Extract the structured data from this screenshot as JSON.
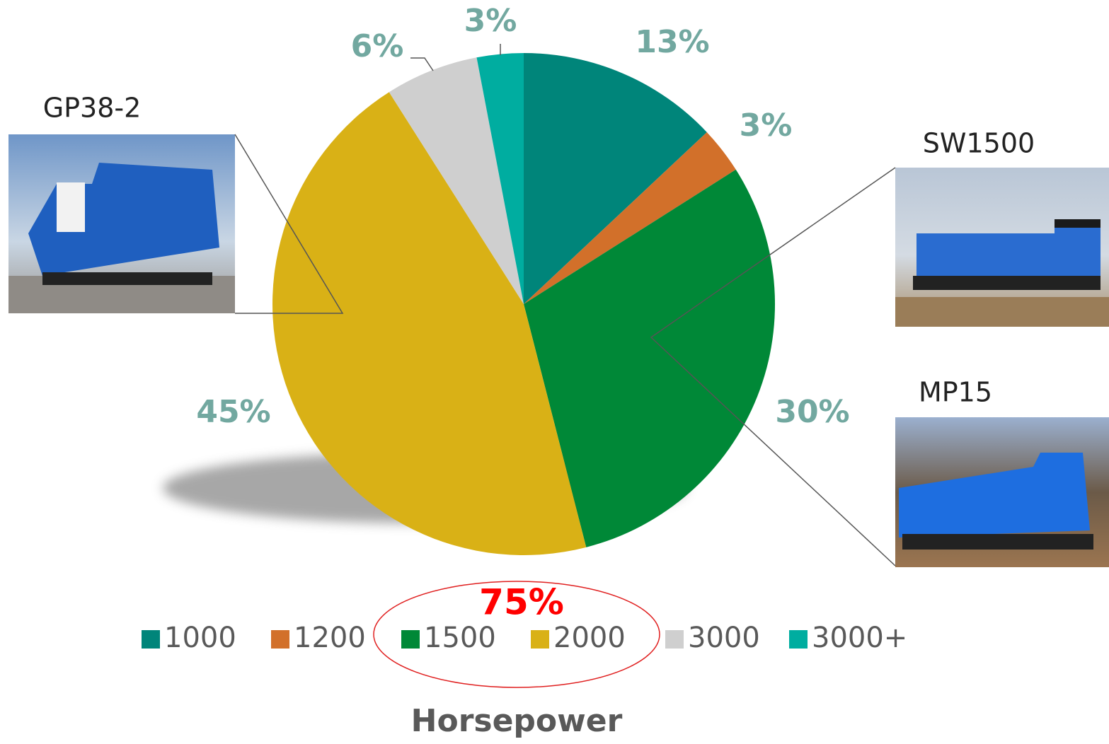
{
  "chart_data": {
    "type": "pie",
    "title": "Horsepower",
    "categories": [
      "1000",
      "1200",
      "1500",
      "2000",
      "3000",
      "3000+"
    ],
    "values": [
      13,
      3,
      30,
      45,
      6,
      3
    ],
    "value_labels": [
      "13%",
      "3%",
      "30%",
      "45%",
      "6%",
      "3%"
    ],
    "colors": [
      "#00857a",
      "#d2702a",
      "#008837",
      "#d9b116",
      "#cfcfcf",
      "#00ada0"
    ],
    "annotation": "75%",
    "photo_labels": [
      "GP38-2",
      "SW1500",
      "MP15"
    ]
  }
}
